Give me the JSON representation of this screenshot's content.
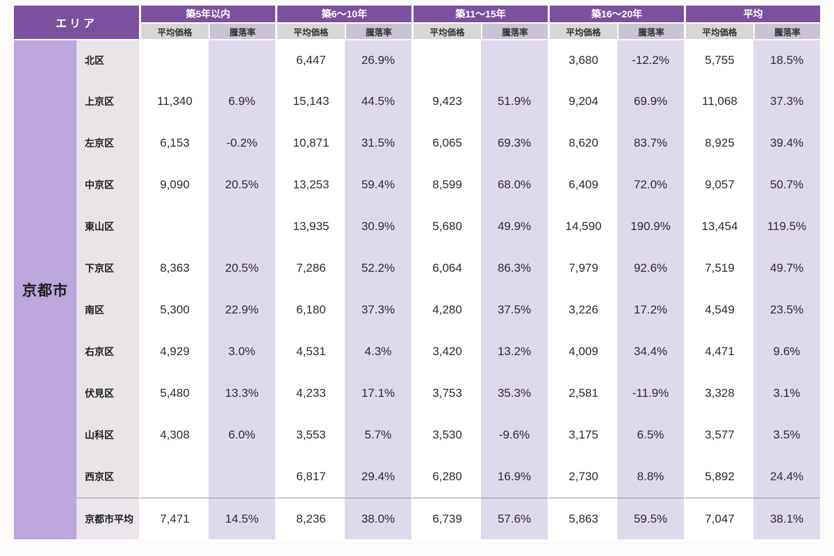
{
  "page": {
    "background": "#FDFBF9"
  },
  "colors": {
    "header_purple": "#7B519F",
    "city_band": "#BCA6DB",
    "district_column": "#E8E4E7",
    "price_subheader": "#D9D6D9",
    "rate_subheader": "#C9C3D4",
    "rate_cell": "#DFD9EC",
    "price_cell": "#FFFFFF",
    "text": "#2E2A2E",
    "separator": "#9B9B9B"
  },
  "chart_data": {
    "type": "table",
    "area_header": "エリア",
    "city": "京都市",
    "column_groups": [
      "築5年以内",
      "築6〜10年",
      "築11〜15年",
      "築16〜20年",
      "平均"
    ],
    "sub_columns": [
      "平均価格",
      "騰落率"
    ],
    "rows": [
      {
        "district": "北区",
        "cells": [
          "",
          "",
          "6,447",
          "26.9%",
          "",
          "",
          "3,680",
          "-12.2%",
          "5,755",
          "18.5%"
        ]
      },
      {
        "district": "上京区",
        "cells": [
          "11,340",
          "6.9%",
          "15,143",
          "44.5%",
          "9,423",
          "51.9%",
          "9,204",
          "69.9%",
          "11,068",
          "37.3%"
        ]
      },
      {
        "district": "左京区",
        "cells": [
          "6,153",
          "-0.2%",
          "10,871",
          "31.5%",
          "6,065",
          "69.3%",
          "8,620",
          "83.7%",
          "8,925",
          "39.4%"
        ]
      },
      {
        "district": "中京区",
        "cells": [
          "9,090",
          "20.5%",
          "13,253",
          "59.4%",
          "8,599",
          "68.0%",
          "6,409",
          "72.0%",
          "9,057",
          "50.7%"
        ]
      },
      {
        "district": "東山区",
        "cells": [
          "",
          "",
          "13,935",
          "30.9%",
          "5,680",
          "49.9%",
          "14,590",
          "190.9%",
          "13,454",
          "119.5%"
        ]
      },
      {
        "district": "下京区",
        "cells": [
          "8,363",
          "20.5%",
          "7,286",
          "52.2%",
          "6,064",
          "86.3%",
          "7,979",
          "92.6%",
          "7,519",
          "49.7%"
        ]
      },
      {
        "district": "南区",
        "cells": [
          "5,300",
          "22.9%",
          "6,180",
          "37.3%",
          "4,280",
          "37.5%",
          "3,226",
          "17.2%",
          "4,549",
          "23.5%"
        ]
      },
      {
        "district": "右京区",
        "cells": [
          "4,929",
          "3.0%",
          "4,531",
          "4.3%",
          "3,420",
          "13.2%",
          "4,009",
          "34.4%",
          "4,471",
          "9.6%"
        ]
      },
      {
        "district": "伏見区",
        "cells": [
          "5,480",
          "13.3%",
          "4,233",
          "17.1%",
          "3,753",
          "35.3%",
          "2,581",
          "-11.9%",
          "3,328",
          "3.1%"
        ]
      },
      {
        "district": "山科区",
        "cells": [
          "4,308",
          "6.0%",
          "3,553",
          "5.7%",
          "3,530",
          "-9.6%",
          "3,175",
          "6.5%",
          "3,577",
          "3.5%"
        ]
      },
      {
        "district": "西京区",
        "cells": [
          "",
          "",
          "6,817",
          "29.4%",
          "6,280",
          "16.9%",
          "2,730",
          "8.8%",
          "5,892",
          "24.4%"
        ]
      },
      {
        "district": "京都市平均",
        "cells": [
          "7,471",
          "14.5%",
          "8,236",
          "38.0%",
          "6,739",
          "57.6%",
          "5,863",
          "59.5%",
          "7,047",
          "38.1%"
        ]
      }
    ]
  }
}
